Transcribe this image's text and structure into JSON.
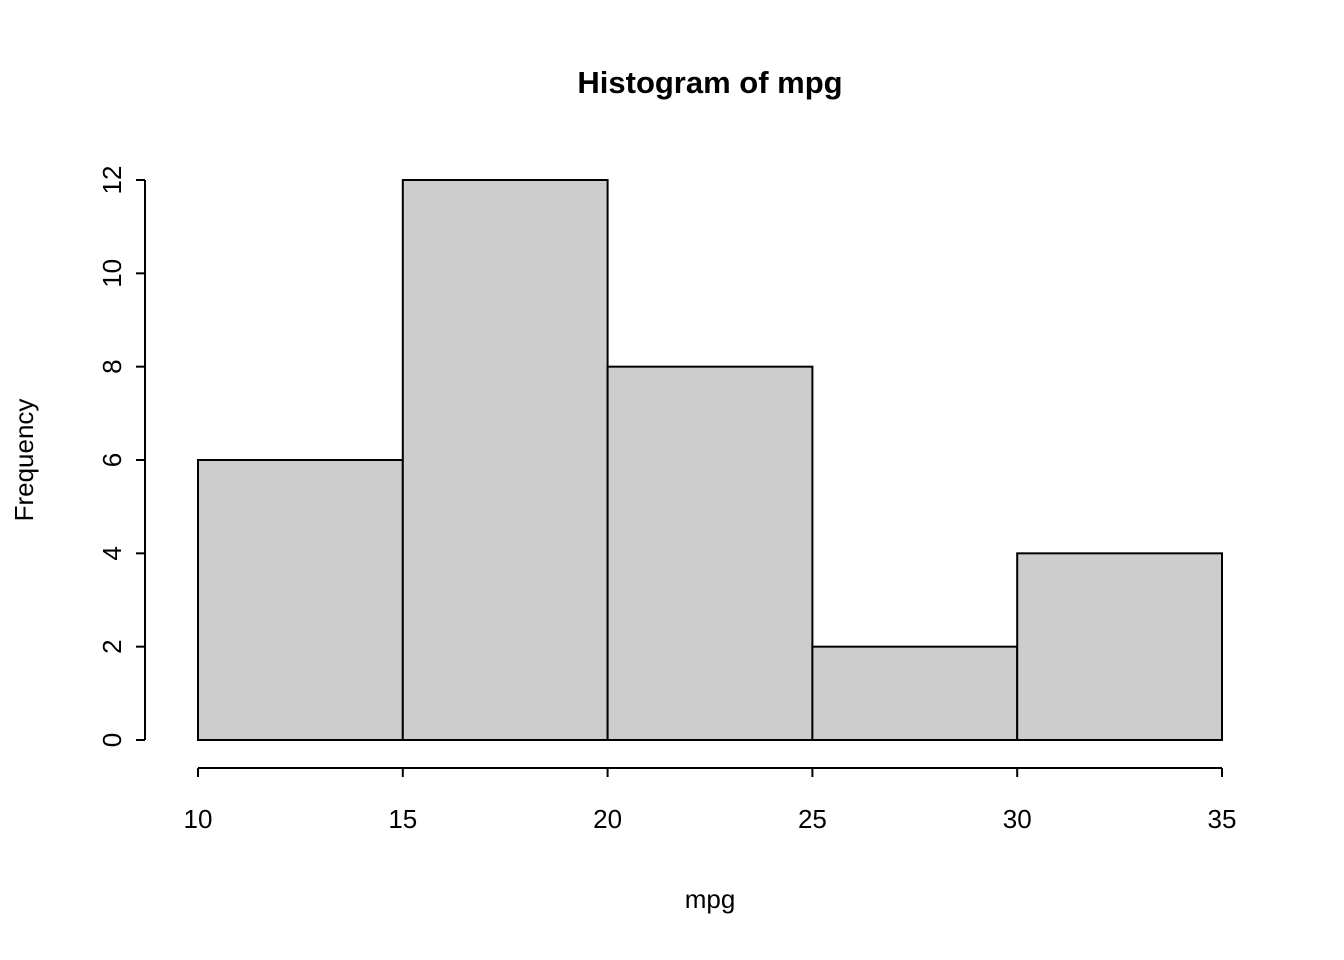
{
  "chart_data": {
    "type": "bar",
    "subtype": "histogram",
    "title": "Histogram of mpg",
    "xlabel": "mpg",
    "ylabel": "Frequency",
    "xlim": [
      10,
      35
    ],
    "ylim": [
      0,
      12
    ],
    "x_ticks": [
      "10",
      "15",
      "20",
      "25",
      "30",
      "35"
    ],
    "y_ticks": [
      "0",
      "2",
      "4",
      "6",
      "8",
      "10",
      "12"
    ],
    "categories": [
      "10-15",
      "15-20",
      "20-25",
      "25-30",
      "30-35"
    ],
    "values": [
      6,
      12,
      8,
      2,
      4
    ],
    "bins": [
      {
        "x0": 10,
        "x1": 15,
        "count": 6
      },
      {
        "x0": 15,
        "x1": 20,
        "count": 12
      },
      {
        "x0": 20,
        "x1": 25,
        "count": 8
      },
      {
        "x0": 25,
        "x1": 30,
        "count": 2
      },
      {
        "x0": 30,
        "x1": 35,
        "count": 4
      }
    ],
    "grid": false,
    "legend": "none",
    "bar_fill": "#cdcdcd",
    "bar_stroke": "#000000",
    "axis_color": "#000000",
    "background": "#ffffff"
  }
}
